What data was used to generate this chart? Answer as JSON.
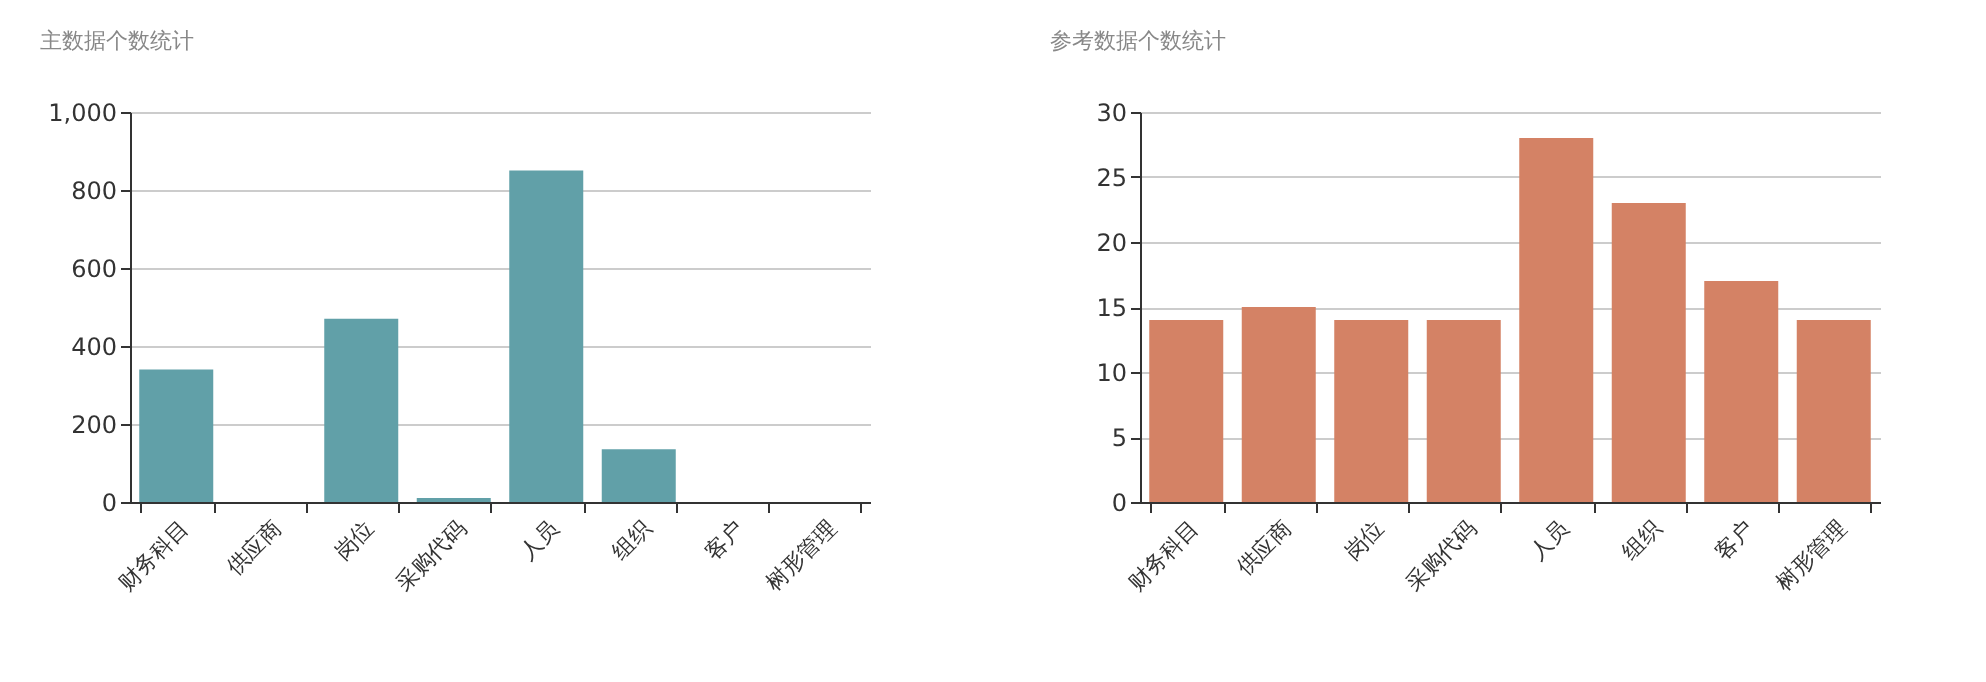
{
  "chart_data": [
    {
      "type": "bar",
      "title": "主数据个数统计",
      "categories": [
        "财务科目",
        "供应商",
        "岗位",
        "采购代码",
        "人员",
        "组织",
        "客户",
        "树形管理"
      ],
      "values": [
        340,
        0,
        470,
        10,
        850,
        135,
        0,
        0
      ],
      "color": "#61a0a8",
      "ylim": [
        0,
        1000
      ],
      "yticks": [
        0,
        {
          "value": 200,
          "label": "200"
        },
        {
          "value": 400,
          "label": "400"
        },
        {
          "value": 600,
          "label": "600"
        },
        {
          "value": 800,
          "label": "800"
        },
        {
          "value": 1000,
          "label": "1,000"
        }
      ],
      "grid": "y"
    },
    {
      "type": "bar",
      "title": "参考数据个数统计",
      "categories": [
        "财务科目",
        "供应商",
        "岗位",
        "采购代码",
        "人员",
        "组织",
        "客户",
        "树形管理"
      ],
      "values": [
        14,
        15,
        14,
        14,
        28,
        23,
        17,
        14
      ],
      "color": "#d48265",
      "ylim": [
        0,
        30
      ],
      "yticks": [
        0,
        5,
        10,
        15,
        20,
        25,
        30
      ],
      "grid": "y"
    }
  ]
}
